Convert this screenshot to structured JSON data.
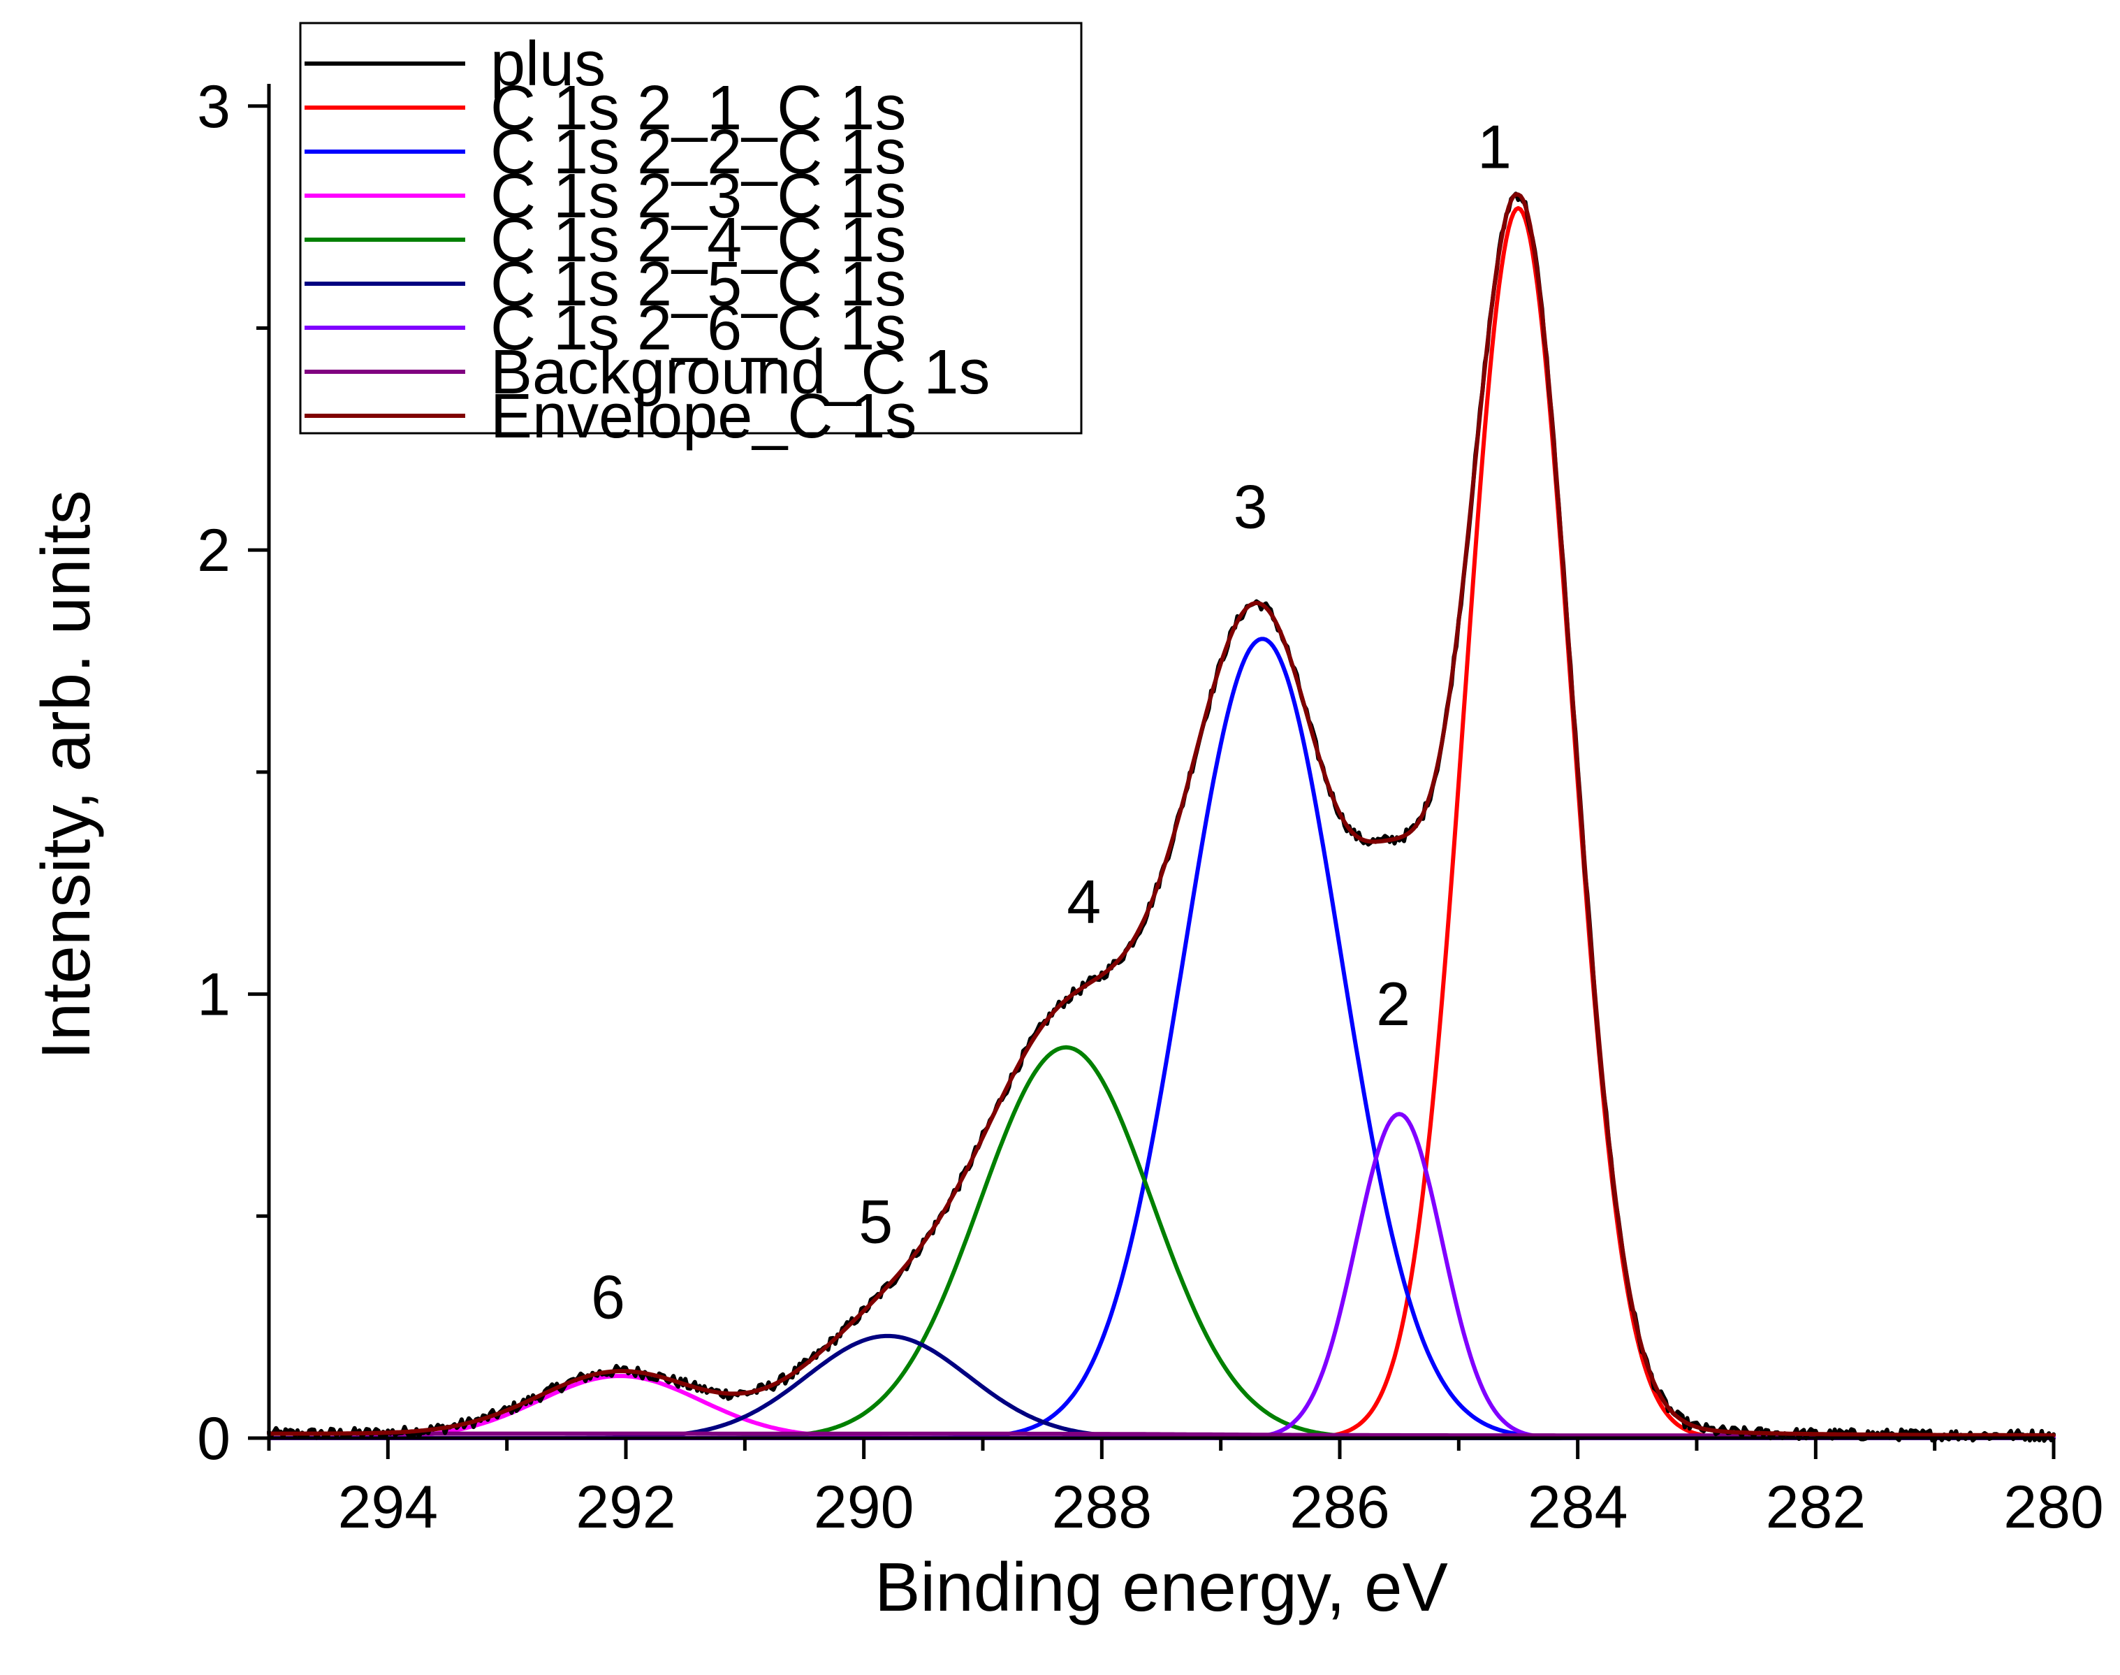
{
  "chart_data": {
    "type": "line",
    "title": "",
    "xlabel": "Binding energy, eV",
    "ylabel": "Intensity, arb. units",
    "xlim": [
      295,
      280
    ],
    "ylim": [
      0,
      3.05
    ],
    "x_reversed": true,
    "x_ticks": [
      294,
      292,
      290,
      288,
      286,
      284,
      282,
      280
    ],
    "y_ticks": [
      0,
      1,
      2,
      3
    ],
    "legend_position": "top-left",
    "series": [
      {
        "name": "plus",
        "color": "#000000",
        "kind": "envelope",
        "noise": true
      },
      {
        "name": "C 1s 2_1_C 1s",
        "color": "#ff0000",
        "center": 284.5,
        "height": 2.77,
        "fwhm": 1.05
      },
      {
        "name": "C 1s 2_2_C 1s",
        "color": "#0000ff",
        "center": 286.65,
        "height": 1.8,
        "fwhm": 1.55
      },
      {
        "name": "C 1s 2_3_C 1s",
        "color": "#ff00ff",
        "center": 292.05,
        "height": 0.14,
        "fwhm": 1.6
      },
      {
        "name": "C 1s 2_4_C 1s",
        "color": "#008000",
        "center": 288.3,
        "height": 0.88,
        "fwhm": 1.7
      },
      {
        "name": "C 1s 2_5_C 1s",
        "color": "#000080",
        "center": 289.8,
        "height": 0.23,
        "fwhm": 1.6
      },
      {
        "name": "C 1s 2_6_C 1s",
        "color": "#8000ff",
        "center": 285.5,
        "height": 0.73,
        "fwhm": 0.85
      },
      {
        "name": "Background_C 1s",
        "color": "#800080",
        "kind": "background"
      },
      {
        "name": "Envelope_C 1s",
        "color": "#800000",
        "kind": "envelope"
      }
    ],
    "annotations": [
      {
        "text": "1",
        "x": 284.7,
        "y": 2.86
      },
      {
        "text": "2",
        "x": 285.55,
        "y": 0.93
      },
      {
        "text": "3",
        "x": 286.75,
        "y": 2.05
      },
      {
        "text": "4",
        "x": 288.15,
        "y": 1.16
      },
      {
        "text": "5",
        "x": 289.9,
        "y": 0.44
      },
      {
        "text": "6",
        "x": 292.15,
        "y": 0.27
      }
    ]
  }
}
